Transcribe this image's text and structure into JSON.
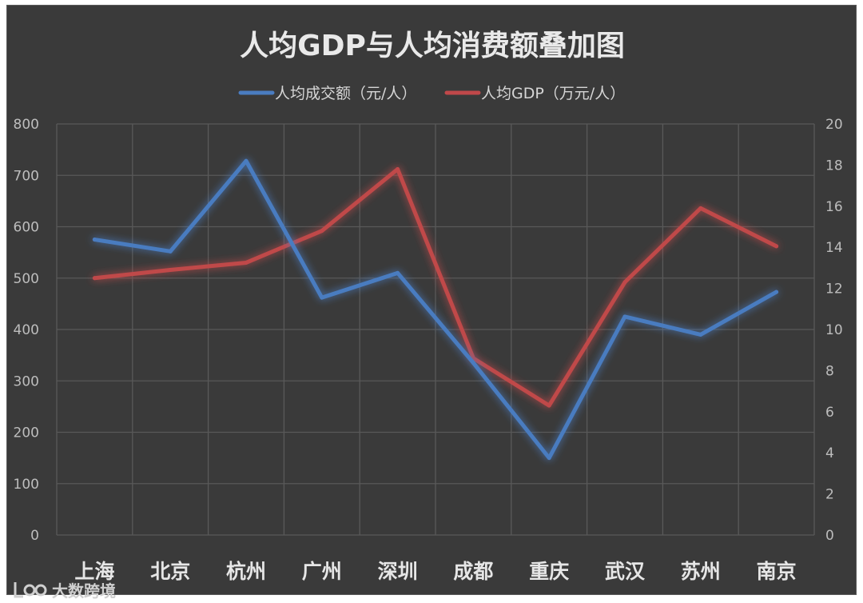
{
  "chart_data": {
    "type": "line",
    "title": "人均GDP与人均消费额叠加图",
    "categories": [
      "上海",
      "北京",
      "杭州",
      "广州",
      "深圳",
      "成都",
      "重庆",
      "武汉",
      "苏州",
      "南京"
    ],
    "series": [
      {
        "name": "人均成交额（元/人）",
        "axis": "left",
        "color": "#4a7cc0",
        "values": [
          575,
          552,
          728,
          462,
          510,
          335,
          150,
          425,
          390,
          473
        ]
      },
      {
        "name": "人均GDP（万元/人）",
        "axis": "right",
        "color": "#c0484a",
        "values": [
          12.5,
          12.9,
          13.25,
          14.8,
          17.8,
          8.6,
          6.3,
          12.3,
          15.9,
          14.05
        ]
      }
    ],
    "y_left": {
      "range": [
        0,
        800
      ],
      "ticks": [
        "0",
        "100",
        "200",
        "300",
        "400",
        "500",
        "600",
        "700",
        "800"
      ]
    },
    "y_right": {
      "range": [
        0,
        20
      ],
      "ticks": [
        "0",
        "2",
        "4",
        "6",
        "8",
        "10",
        "12",
        "14",
        "16",
        "18",
        "20"
      ]
    },
    "grid": true,
    "legend": "top"
  },
  "watermark": {
    "text": "大数跨境"
  }
}
